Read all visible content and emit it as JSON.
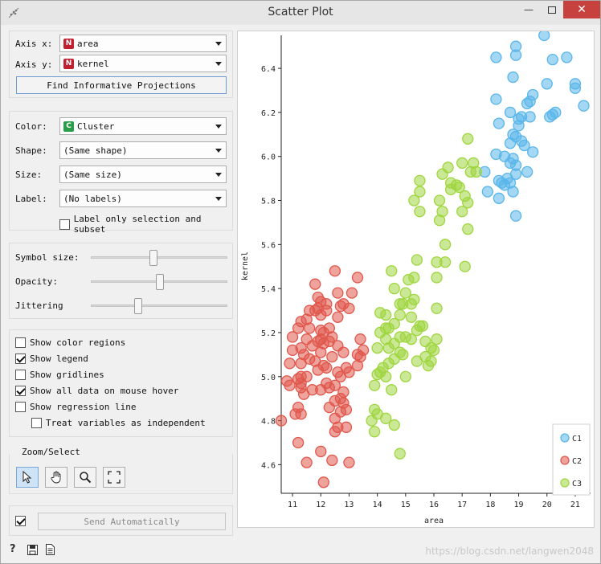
{
  "window": {
    "title": "Scatter Plot"
  },
  "axes_panel": {
    "x_label": "Axis x:",
    "x_value": "area",
    "y_label": "Axis y:",
    "y_value": "kernel",
    "find_button": "Find Informative Projections"
  },
  "attr_panel": {
    "color_label": "Color:",
    "color_value": "Cluster",
    "shape_label": "Shape:",
    "shape_value": "(Same shape)",
    "size_label": "Size:",
    "size_value": "(Same size)",
    "label_label": "Label:",
    "label_value": "(No labels)",
    "label_only": "Label only selection and subset"
  },
  "sliders_panel": {
    "symbol_size_label": "Symbol size:",
    "symbol_size_level": 0.45,
    "opacity_label": "Opacity:",
    "opacity_level": 0.5,
    "jitter_label": "Jittering",
    "jitter_level": 0.33
  },
  "options": [
    {
      "label": "Show color regions",
      "checked": false,
      "indent": false
    },
    {
      "label": "Show legend",
      "checked": true,
      "indent": false
    },
    {
      "label": "Show gridlines",
      "checked": false,
      "indent": false
    },
    {
      "label": "Show all data on mouse hover",
      "checked": true,
      "indent": false
    },
    {
      "label": "Show regression line",
      "checked": false,
      "indent": false
    },
    {
      "label": "Treat variables as independent",
      "checked": false,
      "indent": true
    }
  ],
  "zoom_panel": {
    "title": "Zoom/Select",
    "tools": [
      "pointer-icon",
      "hand-icon",
      "zoom-icon",
      "fit-icon"
    ]
  },
  "send": {
    "checked": true,
    "label": "Send Automatically"
  },
  "status_icons": [
    "help-icon",
    "save-icon",
    "report-icon"
  ],
  "watermark": "https://blog.csdn.net/langwen2048",
  "colors": {
    "C1": "#5ab6ea",
    "C2": "#e0574c",
    "C3": "#9fd63f"
  },
  "chart_data": {
    "type": "scatter",
    "xlabel": "area",
    "ylabel": "kernel",
    "xlim": [
      10.6,
      21.4
    ],
    "ylim": [
      4.47,
      6.55
    ],
    "xticks": [
      11,
      12,
      13,
      14,
      15,
      16,
      17,
      18,
      19,
      20,
      21
    ],
    "yticks": [
      4.6,
      4.8,
      5.0,
      5.2,
      5.4,
      5.6,
      5.8,
      6.0,
      6.2,
      6.4
    ],
    "legend": [
      "C1",
      "C2",
      "C3"
    ],
    "legend_position": "bottom-right",
    "grid": false,
    "series": [
      {
        "name": "C1",
        "points": [
          [
            19.9,
            6.55
          ],
          [
            18.2,
            6.45
          ],
          [
            18.9,
            6.5
          ],
          [
            18.9,
            6.46
          ],
          [
            20.2,
            6.44
          ],
          [
            20.7,
            6.45
          ],
          [
            18.8,
            6.36
          ],
          [
            21.0,
            6.33
          ],
          [
            21.0,
            6.31
          ],
          [
            20.0,
            6.33
          ],
          [
            19.5,
            6.28
          ],
          [
            18.2,
            6.26
          ],
          [
            19.3,
            6.24
          ],
          [
            19.4,
            6.25
          ],
          [
            18.7,
            6.2
          ],
          [
            20.3,
            6.2
          ],
          [
            20.1,
            6.18
          ],
          [
            20.2,
            6.19
          ],
          [
            21.3,
            6.23
          ],
          [
            19.0,
            6.17
          ],
          [
            19.1,
            6.18
          ],
          [
            19.4,
            6.18
          ],
          [
            18.3,
            6.15
          ],
          [
            19.0,
            6.14
          ],
          [
            18.8,
            6.1
          ],
          [
            18.9,
            6.09
          ],
          [
            19.1,
            6.07
          ],
          [
            19.2,
            6.05
          ],
          [
            18.7,
            6.06
          ],
          [
            18.2,
            6.01
          ],
          [
            18.5,
            6.0
          ],
          [
            19.5,
            6.02
          ],
          [
            18.8,
            5.99
          ],
          [
            18.7,
            5.97
          ],
          [
            18.9,
            5.96
          ],
          [
            17.8,
            5.93
          ],
          [
            19.3,
            5.93
          ],
          [
            18.9,
            5.92
          ],
          [
            18.7,
            5.88
          ],
          [
            18.5,
            5.87
          ],
          [
            18.6,
            5.9
          ],
          [
            18.4,
            5.88
          ],
          [
            18.3,
            5.89
          ],
          [
            17.9,
            5.84
          ],
          [
            18.8,
            5.84
          ],
          [
            18.3,
            5.81
          ],
          [
            18.9,
            5.73
          ]
        ]
      },
      {
        "name": "C2",
        "points": [
          [
            12.5,
            5.48
          ],
          [
            13.3,
            5.45
          ],
          [
            11.8,
            5.42
          ],
          [
            12.6,
            5.38
          ],
          [
            13.1,
            5.38
          ],
          [
            11.9,
            5.36
          ],
          [
            12.0,
            5.34
          ],
          [
            12.2,
            5.33
          ],
          [
            12.7,
            5.32
          ],
          [
            12.8,
            5.33
          ],
          [
            11.6,
            5.3
          ],
          [
            11.8,
            5.3
          ],
          [
            11.9,
            5.31
          ],
          [
            12.2,
            5.3
          ],
          [
            13.0,
            5.31
          ],
          [
            12.0,
            5.28
          ],
          [
            11.5,
            5.26
          ],
          [
            12.6,
            5.27
          ],
          [
            11.3,
            5.25
          ],
          [
            12.3,
            5.22
          ],
          [
            11.6,
            5.22
          ],
          [
            11.2,
            5.22
          ],
          [
            12.0,
            5.21
          ],
          [
            12.1,
            5.2
          ],
          [
            12.4,
            5.18
          ],
          [
            12.0,
            5.17
          ],
          [
            11.0,
            5.18
          ],
          [
            11.5,
            5.17
          ],
          [
            11.9,
            5.16
          ],
          [
            12.3,
            5.16
          ],
          [
            12.1,
            5.15
          ],
          [
            13.4,
            5.17
          ],
          [
            11.7,
            5.14
          ],
          [
            11.3,
            5.13
          ],
          [
            12.6,
            5.14
          ],
          [
            13.5,
            5.12
          ],
          [
            11.0,
            5.12
          ],
          [
            12.0,
            5.11
          ],
          [
            11.4,
            5.1
          ],
          [
            12.8,
            5.11
          ],
          [
            13.3,
            5.1
          ],
          [
            13.4,
            5.09
          ],
          [
            11.6,
            5.08
          ],
          [
            12.4,
            5.09
          ],
          [
            11.8,
            5.07
          ],
          [
            11.3,
            5.06
          ],
          [
            12.1,
            5.05
          ],
          [
            10.9,
            5.06
          ],
          [
            13.3,
            5.05
          ],
          [
            11.9,
            5.03
          ],
          [
            12.2,
            5.04
          ],
          [
            12.9,
            5.04
          ],
          [
            13.0,
            5.02
          ],
          [
            12.6,
            5.02
          ],
          [
            11.3,
            5.0
          ],
          [
            11.5,
            5.0
          ],
          [
            12.7,
            5.0
          ],
          [
            11.2,
            4.99
          ],
          [
            10.8,
            4.98
          ],
          [
            12.2,
            4.97
          ],
          [
            11.3,
            4.97
          ],
          [
            12.5,
            4.96
          ],
          [
            11.3,
            4.95
          ],
          [
            10.9,
            4.96
          ],
          [
            12.3,
            4.95
          ],
          [
            11.7,
            4.94
          ],
          [
            12.8,
            4.93
          ],
          [
            12.0,
            4.94
          ],
          [
            11.4,
            4.92
          ],
          [
            12.7,
            4.9
          ],
          [
            12.5,
            4.89
          ],
          [
            12.8,
            4.88
          ],
          [
            11.2,
            4.86
          ],
          [
            12.3,
            4.86
          ],
          [
            12.9,
            4.85
          ],
          [
            12.7,
            4.84
          ],
          [
            11.1,
            4.83
          ],
          [
            11.3,
            4.83
          ],
          [
            12.5,
            4.81
          ],
          [
            10.6,
            4.8
          ],
          [
            12.6,
            4.77
          ],
          [
            12.9,
            4.77
          ],
          [
            12.5,
            4.75
          ],
          [
            11.2,
            4.7
          ],
          [
            12.0,
            4.66
          ],
          [
            11.5,
            4.61
          ],
          [
            12.4,
            4.62
          ],
          [
            13.0,
            4.61
          ],
          [
            12.1,
            4.52
          ]
        ]
      },
      {
        "name": "C3",
        "points": [
          [
            17.2,
            6.08
          ],
          [
            16.5,
            5.95
          ],
          [
            17.0,
            5.97
          ],
          [
            17.4,
            5.97
          ],
          [
            17.5,
            5.93
          ],
          [
            17.3,
            5.93
          ],
          [
            16.3,
            5.92
          ],
          [
            15.5,
            5.89
          ],
          [
            16.6,
            5.88
          ],
          [
            16.8,
            5.87
          ],
          [
            16.9,
            5.86
          ],
          [
            16.6,
            5.85
          ],
          [
            15.5,
            5.84
          ],
          [
            17.1,
            5.82
          ],
          [
            16.2,
            5.8
          ],
          [
            15.3,
            5.8
          ],
          [
            17.2,
            5.79
          ],
          [
            15.5,
            5.75
          ],
          [
            16.3,
            5.75
          ],
          [
            17.0,
            5.75
          ],
          [
            16.2,
            5.71
          ],
          [
            17.2,
            5.67
          ],
          [
            16.4,
            5.6
          ],
          [
            15.4,
            5.53
          ],
          [
            16.1,
            5.52
          ],
          [
            16.4,
            5.52
          ],
          [
            14.5,
            5.48
          ],
          [
            17.1,
            5.5
          ],
          [
            15.1,
            5.44
          ],
          [
            15.3,
            5.45
          ],
          [
            16.1,
            5.45
          ],
          [
            14.6,
            5.4
          ],
          [
            15.0,
            5.38
          ],
          [
            15.3,
            5.35
          ],
          [
            14.8,
            5.33
          ],
          [
            14.9,
            5.33
          ],
          [
            15.2,
            5.33
          ],
          [
            16.1,
            5.31
          ],
          [
            14.1,
            5.29
          ],
          [
            14.3,
            5.28
          ],
          [
            14.8,
            5.28
          ],
          [
            15.2,
            5.27
          ],
          [
            14.6,
            5.24
          ],
          [
            15.5,
            5.23
          ],
          [
            14.3,
            5.22
          ],
          [
            14.4,
            5.22
          ],
          [
            15.6,
            5.23
          ],
          [
            15.4,
            5.21
          ],
          [
            14.1,
            5.2
          ],
          [
            14.8,
            5.18
          ],
          [
            15.0,
            5.18
          ],
          [
            16.1,
            5.17
          ],
          [
            14.3,
            5.17
          ],
          [
            15.2,
            5.17
          ],
          [
            15.7,
            5.16
          ],
          [
            14.6,
            5.15
          ],
          [
            15.9,
            5.13
          ],
          [
            14.0,
            5.13
          ],
          [
            14.4,
            5.13
          ],
          [
            14.8,
            5.11
          ],
          [
            16.0,
            5.12
          ],
          [
            14.9,
            5.1
          ],
          [
            15.7,
            5.09
          ],
          [
            14.6,
            5.08
          ],
          [
            15.4,
            5.07
          ],
          [
            15.9,
            5.07
          ],
          [
            14.4,
            5.06
          ],
          [
            15.8,
            5.05
          ],
          [
            14.2,
            5.04
          ],
          [
            14.0,
            5.01
          ],
          [
            14.1,
            5.02
          ],
          [
            14.3,
            5.0
          ],
          [
            15.0,
            5.0
          ],
          [
            13.9,
            4.96
          ],
          [
            14.5,
            4.94
          ],
          [
            13.9,
            4.85
          ],
          [
            14.0,
            4.83
          ],
          [
            14.3,
            4.81
          ],
          [
            13.8,
            4.8
          ],
          [
            14.6,
            4.78
          ],
          [
            13.9,
            4.75
          ],
          [
            14.8,
            4.65
          ]
        ]
      }
    ]
  }
}
